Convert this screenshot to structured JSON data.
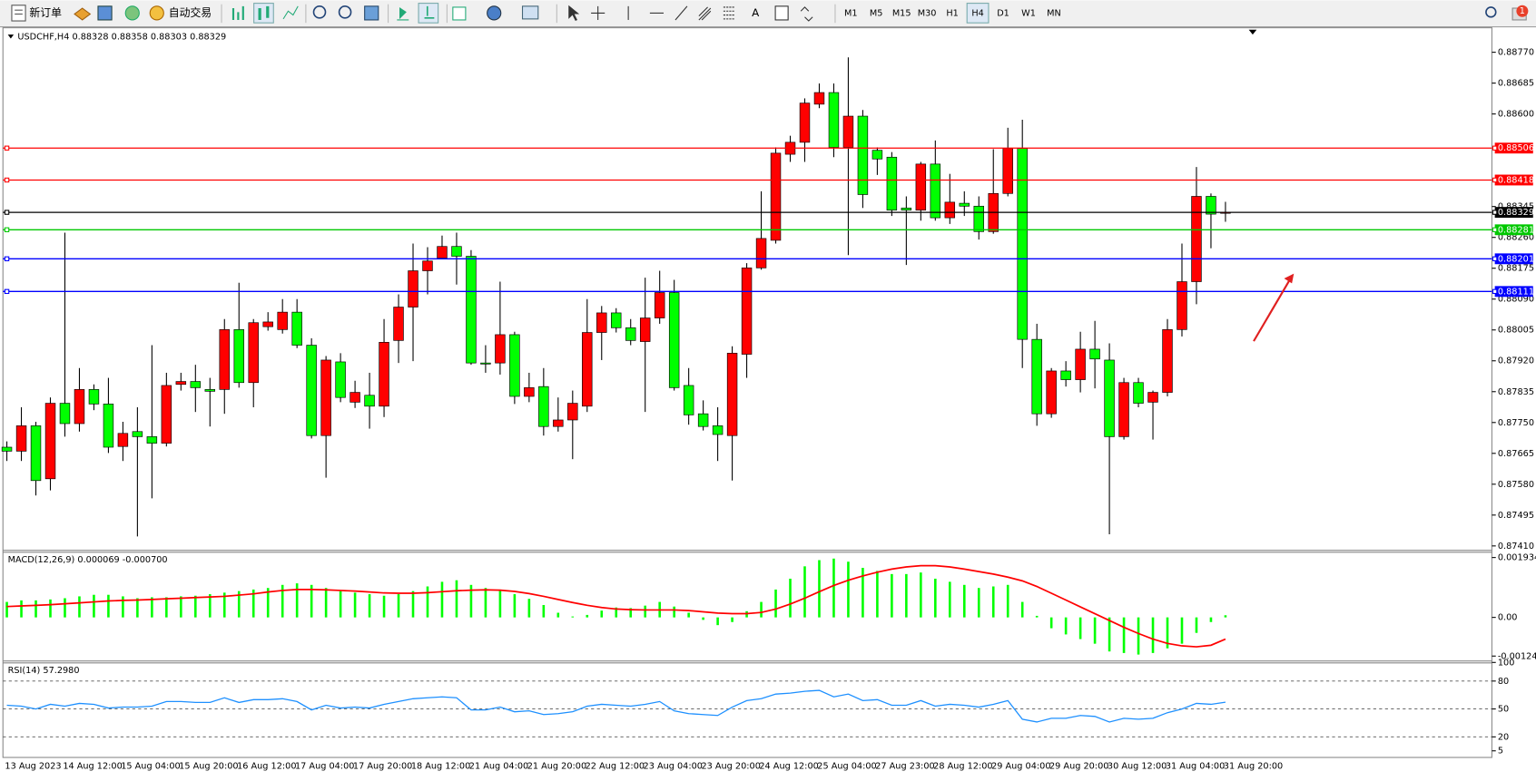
{
  "toolbar": {
    "new_order": "新订单",
    "auto_trading": "自动交易",
    "text_tool": "A",
    "timeframes": [
      "M1",
      "M5",
      "M15",
      "M30",
      "H1",
      "H4",
      "D1",
      "W1",
      "MN"
    ],
    "active_timeframe": "H4",
    "notifications": 1
  },
  "chart_data": [
    {
      "type": "candlestick",
      "title": "USDCHF,H4  0.88328 0.88358 0.88303 0.88329",
      "categories": [
        "13 Aug 2023",
        null,
        null,
        null,
        "14 Aug 12:00",
        null,
        null,
        null,
        "15 Aug 04:00",
        null,
        null,
        null,
        "15 Aug 20:00",
        null,
        null,
        null,
        "16 Aug 12:00",
        null,
        null,
        null,
        "17 Aug 04:00",
        null,
        null,
        null,
        "17 Aug 20:00",
        null,
        null,
        null,
        "18 Aug 12:00",
        null,
        null,
        null,
        "21 Aug 04:00",
        null,
        null,
        null,
        "21 Aug 20:00",
        null,
        null,
        null,
        "22 Aug 12:00",
        null,
        null,
        null,
        "23 Aug 04:00",
        null,
        null,
        null,
        "23 Aug 20:00",
        null,
        null,
        null,
        "24 Aug 12:00",
        null,
        null,
        null,
        "25 Aug 04:00",
        null,
        null,
        null,
        "27 Aug 23:00",
        null,
        null,
        null,
        "28 Aug 12:00",
        null,
        null,
        null,
        "29 Aug 04:00",
        null,
        null,
        null,
        "29 Aug 20:00",
        null,
        null,
        null,
        "30 Aug 12:00",
        null,
        null,
        null,
        "31 Aug 04:00",
        null,
        null,
        null,
        "31 Aug 20:00"
      ],
      "open": [
        0.87682,
        0.87671,
        0.87741,
        0.87595,
        0.87803,
        0.87747,
        0.87841,
        0.87801,
        0.87684,
        0.87725,
        0.87711,
        0.87693,
        0.87855,
        0.87863,
        0.87841,
        0.87841,
        0.88006,
        0.8786,
        0.88014,
        0.88006,
        0.88054,
        0.87963,
        0.87714,
        0.87917,
        0.87806,
        0.87825,
        0.87795,
        0.87976,
        0.88068,
        0.88168,
        0.88203,
        0.88235,
        0.88208,
        0.87914,
        0.87914,
        0.87992,
        0.87822,
        0.87849,
        0.87739,
        0.87757,
        0.87795,
        0.87998,
        0.88052,
        0.88011,
        0.87973,
        0.88038,
        0.88108,
        0.87852,
        0.87774,
        0.87741,
        0.87714,
        0.87938,
        0.88176,
        0.88252,
        0.88489,
        0.88522,
        0.88627,
        0.88659,
        0.88508,
        0.88594,
        0.885,
        0.88481,
        0.88341,
        0.88335,
        0.88462,
        0.88314,
        0.88354,
        0.88346,
        0.88276,
        0.88381,
        0.88505,
        0.87979,
        0.87774,
        0.87892,
        0.87868,
        0.87952,
        0.87922,
        0.87711,
        0.8786,
        0.87806,
        0.87833,
        0.88006,
        0.88138,
        0.88373,
        0.88328
      ],
      "high": [
        0.87698,
        0.87792,
        0.87752,
        0.87819,
        0.88273,
        0.879,
        0.87855,
        0.87873,
        0.87752,
        0.87792,
        0.87963,
        0.87887,
        0.87887,
        0.87909,
        0.87873,
        0.88035,
        0.88135,
        0.88035,
        0.88054,
        0.8809,
        0.8809,
        0.87982,
        0.87933,
        0.87941,
        0.87865,
        0.87887,
        0.88035,
        0.88103,
        0.88243,
        0.88233,
        0.88265,
        0.88273,
        0.88225,
        0.87963,
        0.88138,
        0.88,
        0.87887,
        0.879,
        0.87819,
        0.87838,
        0.8809,
        0.88071,
        0.88065,
        0.88035,
        0.88149,
        0.88168,
        0.88143,
        0.879,
        0.87811,
        0.87792,
        0.8796,
        0.88189,
        0.88387,
        0.88508,
        0.8854,
        0.88643,
        0.88684,
        0.88684,
        0.88756,
        0.88611,
        0.88508,
        0.88495,
        0.88373,
        0.88468,
        0.88527,
        0.88435,
        0.88387,
        0.88373,
        0.88503,
        0.88562,
        0.88584,
        0.88022,
        0.879,
        0.87919,
        0.88,
        0.8803,
        0.87968,
        0.87873,
        0.87873,
        0.87838,
        0.88035,
        0.88243,
        0.88454,
        0.88381,
        0.88358
      ],
      "low": [
        0.87644,
        0.87644,
        0.87549,
        0.87563,
        0.87711,
        0.87725,
        0.87784,
        0.87666,
        0.87644,
        0.87436,
        0.87541,
        0.87684,
        0.87838,
        0.87779,
        0.87739,
        0.87774,
        0.87846,
        0.87792,
        0.88003,
        0.87995,
        0.87955,
        0.87706,
        0.87598,
        0.87806,
        0.8779,
        0.87733,
        0.87765,
        0.87914,
        0.87919,
        0.88103,
        0.88203,
        0.8813,
        0.87909,
        0.87887,
        0.87882,
        0.87801,
        0.87806,
        0.87714,
        0.87725,
        0.87649,
        0.87779,
        0.87922,
        0.87998,
        0.87963,
        0.87779,
        0.88022,
        0.87838,
        0.87744,
        0.87728,
        0.87644,
        0.8759,
        0.87873,
        0.88171,
        0.88243,
        0.88468,
        0.88468,
        0.88616,
        0.88481,
        0.88211,
        0.88341,
        0.88432,
        0.88319,
        0.88184,
        0.88306,
        0.88306,
        0.88297,
        0.88319,
        0.88254,
        0.8827,
        0.88373,
        0.879,
        0.87741,
        0.87763,
        0.87849,
        0.87833,
        0.87844,
        0.87442,
        0.87703,
        0.87792,
        0.87703,
        0.87822,
        0.87987,
        0.88076,
        0.8823,
        0.88303
      ],
      "close": [
        0.87671,
        0.87741,
        0.8759,
        0.87803,
        0.87747,
        0.87841,
        0.87801,
        0.87682,
        0.8772,
        0.87711,
        0.87693,
        0.87852,
        0.87863,
        0.87846,
        0.87836,
        0.88006,
        0.8786,
        0.88025,
        0.88027,
        0.88054,
        0.87963,
        0.87714,
        0.87922,
        0.87819,
        0.87833,
        0.87795,
        0.87971,
        0.88068,
        0.88168,
        0.88195,
        0.88235,
        0.88208,
        0.87914,
        0.87911,
        0.87992,
        0.87822,
        0.87846,
        0.87739,
        0.87757,
        0.87803,
        0.87998,
        0.88052,
        0.88011,
        0.87976,
        0.88038,
        0.88108,
        0.87846,
        0.87771,
        0.87739,
        0.87717,
        0.87941,
        0.88176,
        0.88257,
        0.88492,
        0.88522,
        0.8863,
        0.88659,
        0.88508,
        0.88594,
        0.88378,
        0.88476,
        0.88335,
        0.88335,
        0.88462,
        0.88314,
        0.88357,
        0.88346,
        0.88276,
        0.88381,
        0.88505,
        0.87979,
        0.87774,
        0.87892,
        0.87868,
        0.87952,
        0.87925,
        0.87711,
        0.8786,
        0.87803,
        0.87833,
        0.88006,
        0.88138,
        0.88373,
        0.88324,
        0.88329
      ],
      "up_color": "#ff0000",
      "down_color": "#00ff00",
      "ylim": [
        0.87402,
        0.888375
      ],
      "yticks": [
        {
          "value": 0.8877,
          "label": "0.88770"
        },
        0.88685,
        {
          "value": 0.886,
          "label": "0.88600"
        },
        0.88345,
        {
          "value": 0.8826,
          "label": "0.88260"
        },
        0.88175,
        {
          "value": 0.8809,
          "label": "0.88090"
        },
        0.88005,
        {
          "value": 0.8792,
          "label": "0.87920"
        },
        0.87835,
        {
          "value": 0.8775,
          "label": "0.87750"
        },
        0.87665,
        {
          "value": 0.8758,
          "label": "0.87580"
        },
        0.87495,
        {
          "value": 0.8741,
          "label": "0.87410"
        }
      ],
      "levels": [
        {
          "value": 0.88506,
          "color": "#ff0000"
        },
        {
          "value": 0.88418,
          "color": "#ff0000"
        },
        {
          "value": 0.88329,
          "color": "#000000"
        },
        {
          "value": 0.88281,
          "color": "#00c800"
        },
        {
          "value": 0.88201,
          "color": "#0000ff"
        },
        {
          "value": 0.88111,
          "color": "#0000ff"
        }
      ],
      "grid": false
    },
    {
      "type": "macd",
      "title": "MACD(12,26,9) 0.000069 -0.000700",
      "histogram": {
        "color": "#00ff00",
        "values": [
          0.0005,
          0.00055,
          0.00055,
          0.00058,
          0.00062,
          0.00068,
          0.00073,
          0.00073,
          0.00068,
          0.00062,
          0.00065,
          0.00065,
          0.00068,
          0.0007,
          0.00075,
          0.0008,
          0.00085,
          0.0009,
          0.00095,
          0.00105,
          0.0011,
          0.00105,
          0.00095,
          0.00085,
          0.0008,
          0.00075,
          0.0007,
          0.00075,
          0.00085,
          0.001,
          0.00115,
          0.0012,
          0.00105,
          0.00095,
          0.0009,
          0.00075,
          0.0006,
          0.0004,
          0.00015,
          3e-05,
          8e-05,
          0.00022,
          0.00032,
          0.0003,
          0.00038,
          0.0005,
          0.00035,
          0.00015,
          -8e-05,
          -0.00025,
          -0.00015,
          0.0002,
          0.0005,
          0.0009,
          0.00125,
          0.00165,
          0.00185,
          0.0019,
          0.0018,
          0.0016,
          0.0015,
          0.0014,
          0.0014,
          0.00145,
          0.00125,
          0.00115,
          0.00105,
          0.00095,
          0.001,
          0.00105,
          0.0005,
          5e-05,
          -0.00035,
          -0.00055,
          -0.0007,
          -0.00085,
          -0.0011,
          -0.00115,
          -0.0012,
          -0.00115,
          -0.001,
          -0.00085,
          -0.0005,
          -0.00015,
          6.9e-05
        ]
      },
      "signal": {
        "color": "#ff0000",
        "values": [
          0.00035,
          0.00037,
          0.00039,
          0.00041,
          0.00044,
          0.00047,
          0.0005,
          0.00053,
          0.00055,
          0.00056,
          0.00058,
          0.0006,
          0.00062,
          0.00064,
          0.00066,
          0.00068,
          0.00072,
          0.00076,
          0.00082,
          0.00087,
          0.0009,
          0.0009,
          0.00089,
          0.00087,
          0.00085,
          0.00082,
          0.00079,
          0.00078,
          0.00078,
          0.0008,
          0.00083,
          0.00086,
          0.00088,
          0.00089,
          0.00088,
          0.00084,
          0.00077,
          0.00068,
          0.00058,
          0.00048,
          0.00039,
          0.00032,
          0.00027,
          0.00025,
          0.00024,
          0.00024,
          0.00024,
          0.00022,
          0.00018,
          0.00014,
          0.00012,
          0.00012,
          0.00016,
          0.00027,
          0.00043,
          0.00062,
          0.00083,
          0.00103,
          0.0012,
          0.00134,
          0.00146,
          0.00156,
          0.00163,
          0.00167,
          0.00167,
          0.00163,
          0.00156,
          0.00148,
          0.0014,
          0.0013,
          0.00118,
          0.001,
          0.00078,
          0.00056,
          0.00034,
          0.00012,
          -0.0001,
          -0.00032,
          -0.00052,
          -0.0007,
          -0.00084,
          -0.00092,
          -0.00095,
          -0.0009,
          -0.0007
        ]
      },
      "ylim": [
        -0.00136,
        0.00212
      ],
      "yticks": [
        0.001934,
        {
          "value": 0,
          "label": "0.00"
        },
        -0.001249
      ]
    },
    {
      "type": "line",
      "title": "RSI(14) 57.2980",
      "color": "#1e90ff",
      "values": [
        54,
        53,
        50,
        55,
        53,
        56,
        55,
        51,
        52,
        52,
        53,
        58,
        58,
        57,
        57,
        62,
        57,
        60,
        60,
        61,
        58,
        49,
        54,
        51,
        52,
        51,
        55,
        58,
        61,
        62,
        63,
        62,
        49,
        49,
        52,
        47,
        48,
        44,
        45,
        47,
        53,
        55,
        54,
        53,
        55,
        58,
        48,
        45,
        44,
        43,
        52,
        59,
        61,
        66,
        67,
        69,
        70,
        63,
        66,
        59,
        60,
        54,
        54,
        59,
        53,
        55,
        54,
        52,
        55,
        59,
        39,
        36,
        40,
        40,
        43,
        42,
        36,
        40,
        39,
        40,
        46,
        50,
        56,
        55,
        57.298
      ],
      "ylim": [
        0,
        100
      ],
      "yticks": [
        100,
        80,
        50,
        20,
        5
      ],
      "levels": [
        80,
        50,
        20
      ]
    }
  ]
}
